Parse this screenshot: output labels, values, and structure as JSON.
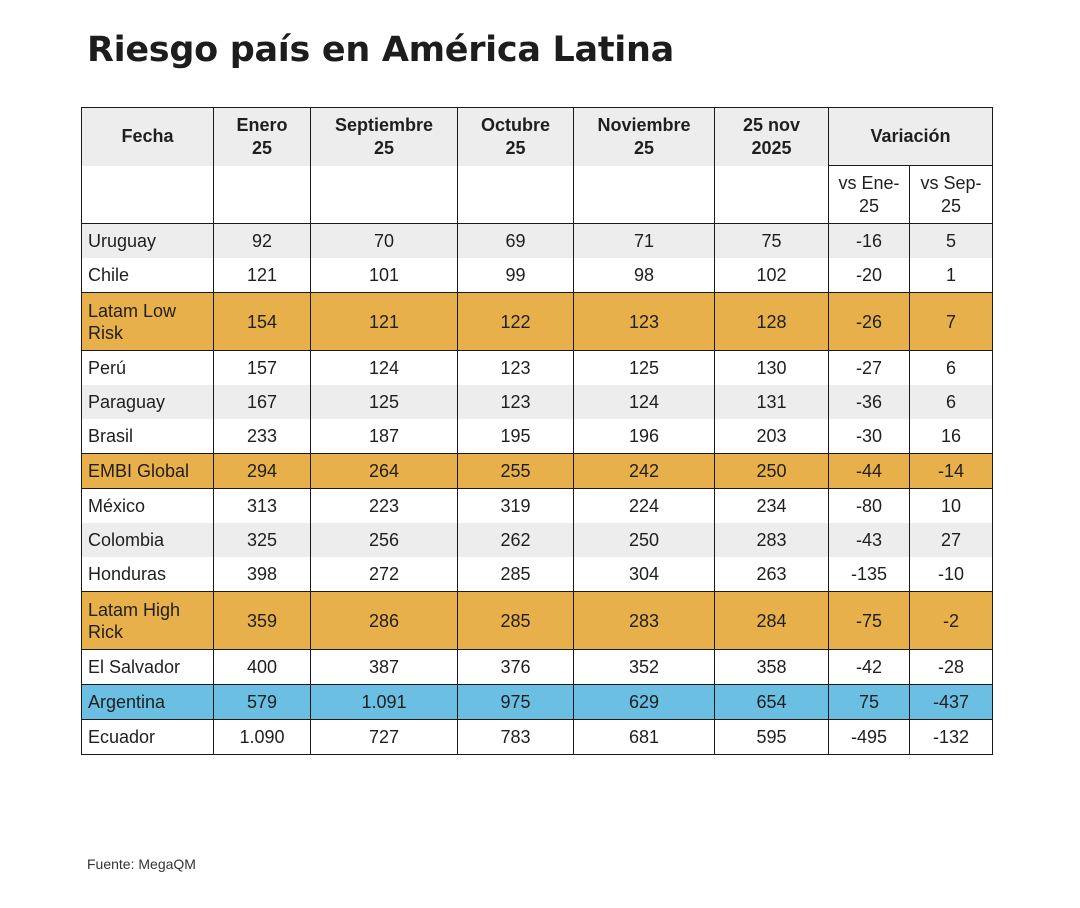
{
  "title": "Riesgo país en América Latina",
  "source": "Fuente: MegaQM",
  "header": {
    "fecha": "Fecha",
    "variacion": "Variación",
    "columns": [
      {
        "line1": "Enero",
        "line2": "25"
      },
      {
        "line1": "Septiembre",
        "line2": "25"
      },
      {
        "line1": "Octubre",
        "line2": "25"
      },
      {
        "line1": "Noviembre",
        "line2": "25"
      },
      {
        "line1": "25 nov",
        "line2": "2025"
      }
    ],
    "var_columns": [
      {
        "line1": "vs Ene-",
        "line2": "25"
      },
      {
        "line1": "vs Sep-",
        "line2": "25"
      }
    ]
  },
  "colors": {
    "highlight_gold": "#e8b04a",
    "highlight_blue": "#6bbfe3",
    "row_gray": "#ededed"
  },
  "rows": [
    {
      "name": "Uruguay",
      "values": [
        "92",
        "70",
        "69",
        "71",
        "75",
        "-16",
        "5"
      ]
    },
    {
      "name": "Chile",
      "values": [
        "121",
        "101",
        "99",
        "98",
        "102",
        "-20",
        "1"
      ]
    },
    {
      "name": "Latam Low Risk",
      "values": [
        "154",
        "121",
        "122",
        "123",
        "128",
        "-26",
        "7"
      ]
    },
    {
      "name": "Perú",
      "values": [
        "157",
        "124",
        "123",
        "125",
        "130",
        "-27",
        "6"
      ]
    },
    {
      "name": "Paraguay",
      "values": [
        "167",
        "125",
        "123",
        "124",
        "131",
        "-36",
        "6"
      ]
    },
    {
      "name": "Brasil",
      "values": [
        "233",
        "187",
        "195",
        "196",
        "203",
        "-30",
        "16"
      ]
    },
    {
      "name": "EMBI Global",
      "values": [
        "294",
        "264",
        "255",
        "242",
        "250",
        "-44",
        "-14"
      ]
    },
    {
      "name": "México",
      "values": [
        "313",
        "223",
        "319",
        "224",
        "234",
        "-80",
        "10"
      ]
    },
    {
      "name": "Colombia",
      "values": [
        "325",
        "256",
        "262",
        "250",
        "283",
        "-43",
        "27"
      ]
    },
    {
      "name": "Honduras",
      "values": [
        "398",
        "272",
        "285",
        "304",
        "263",
        "-135",
        "-10"
      ]
    },
    {
      "name": "Latam High Rick",
      "values": [
        "359",
        "286",
        "285",
        "283",
        "284",
        "-75",
        "-2"
      ]
    },
    {
      "name": "El Salvador",
      "values": [
        "400",
        "387",
        "376",
        "352",
        "358",
        "-42",
        "-28"
      ]
    },
    {
      "name": "Argentina",
      "values": [
        "579",
        "1.091",
        "975",
        "629",
        "654",
        "75",
        "-437"
      ]
    },
    {
      "name": "Ecuador",
      "values": [
        "1.090",
        "727",
        "783",
        "681",
        "595",
        "-495",
        "-132"
      ]
    }
  ],
  "chart_data": {
    "type": "table",
    "title": "Riesgo país en América Latina",
    "columns": [
      "Fecha",
      "Enero 25",
      "Septiembre 25",
      "Octubre 25",
      "Noviembre 25",
      "25 nov 2025",
      "Variación vs Ene-25",
      "Variación vs Sep-25"
    ],
    "rows": [
      [
        "Uruguay",
        92,
        70,
        69,
        71,
        75,
        -16,
        5
      ],
      [
        "Chile",
        121,
        101,
        99,
        98,
        102,
        -20,
        1
      ],
      [
        "Latam Low Risk",
        154,
        121,
        122,
        123,
        128,
        -26,
        7
      ],
      [
        "Perú",
        157,
        124,
        123,
        125,
        130,
        -27,
        6
      ],
      [
        "Paraguay",
        167,
        125,
        123,
        124,
        131,
        -36,
        6
      ],
      [
        "Brasil",
        233,
        187,
        195,
        196,
        203,
        -30,
        16
      ],
      [
        "EMBI Global",
        294,
        264,
        255,
        242,
        250,
        -44,
        -14
      ],
      [
        "México",
        313,
        223,
        319,
        224,
        234,
        -80,
        10
      ],
      [
        "Colombia",
        325,
        256,
        262,
        250,
        283,
        -43,
        27
      ],
      [
        "Honduras",
        398,
        272,
        285,
        304,
        263,
        -135,
        -10
      ],
      [
        "Latam High Rick",
        359,
        286,
        285,
        283,
        284,
        -75,
        -2
      ],
      [
        "El Salvador",
        400,
        387,
        376,
        352,
        358,
        -42,
        -28
      ],
      [
        "Argentina",
        579,
        1091,
        975,
        629,
        654,
        75,
        -437
      ],
      [
        "Ecuador",
        1090,
        727,
        783,
        681,
        595,
        -495,
        -132
      ]
    ]
  }
}
